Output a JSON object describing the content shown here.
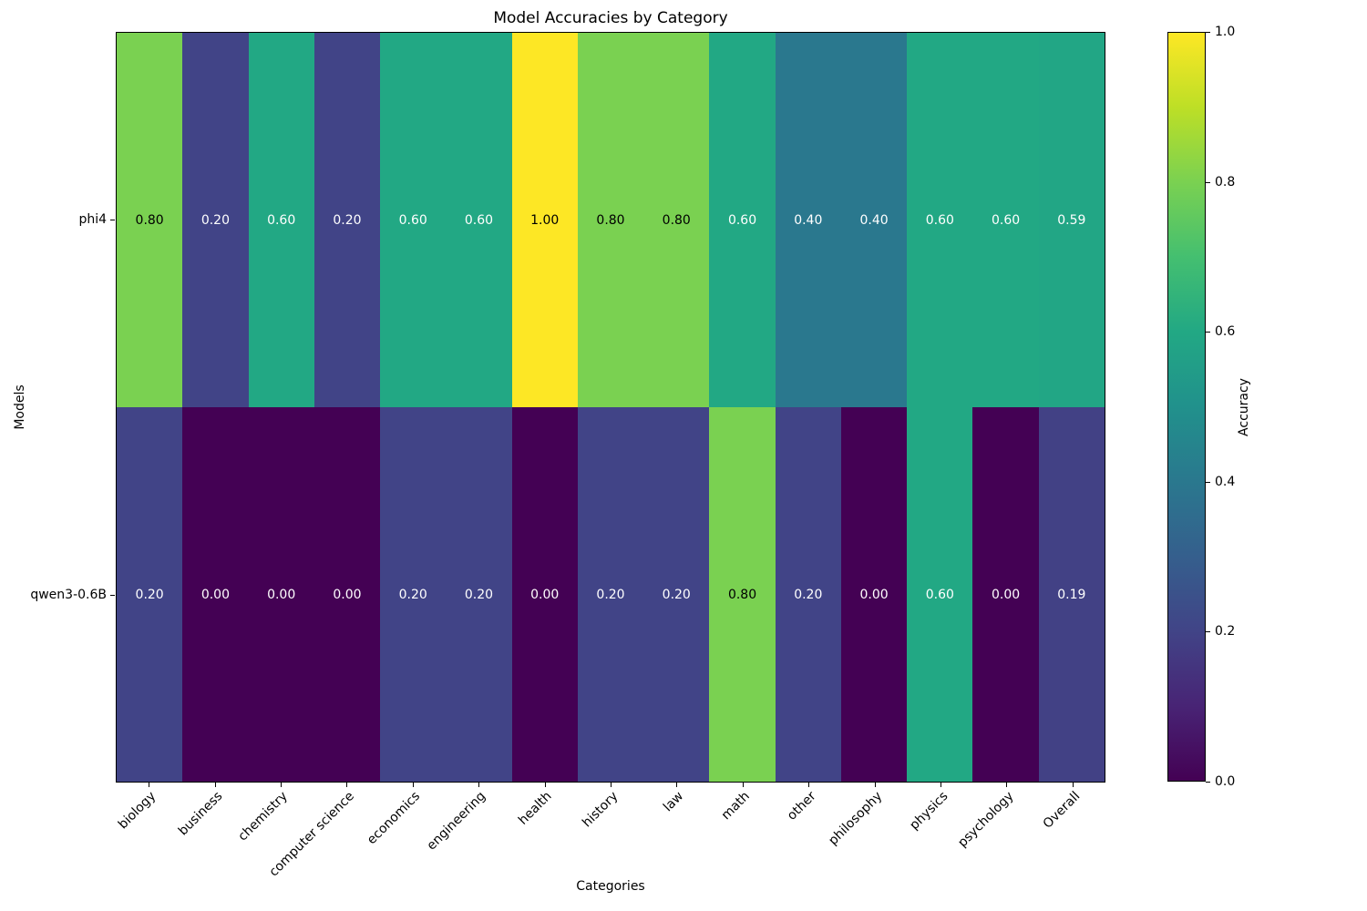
{
  "chart_data": {
    "type": "heatmap",
    "title": "Model Accuracies by Category",
    "xlabel": "Categories",
    "ylabel": "Models",
    "colorbar_label": "Accuracy",
    "colorbar_ticks": [
      1.0,
      0.8,
      0.6,
      0.4,
      0.2,
      0.0
    ],
    "vmin": 0.0,
    "vmax": 1.0,
    "categories": [
      "biology",
      "business",
      "chemistry",
      "computer science",
      "economics",
      "engineering",
      "health",
      "history",
      "law",
      "math",
      "other",
      "philosophy",
      "physics",
      "psychology",
      "Overall"
    ],
    "models": [
      "phi4",
      "qwen3-0.6B"
    ],
    "series": [
      {
        "name": "phi4",
        "values": [
          0.8,
          0.2,
          0.6,
          0.2,
          0.6,
          0.6,
          1.0,
          0.8,
          0.8,
          0.6,
          0.4,
          0.4,
          0.6,
          0.6,
          0.59
        ]
      },
      {
        "name": "qwen3-0.6B",
        "values": [
          0.2,
          0.0,
          0.0,
          0.0,
          0.2,
          0.2,
          0.0,
          0.2,
          0.2,
          0.8,
          0.2,
          0.0,
          0.6,
          0.0,
          0.19
        ]
      }
    ],
    "annotation_text_colors": {
      "dark": "#000000",
      "light": "#ffffff"
    },
    "colormap": {
      "name": "viridis",
      "stops": [
        {
          "pos": 0.0,
          "hex": "#440154"
        },
        {
          "pos": 0.1,
          "hex": "#482475"
        },
        {
          "pos": 0.2,
          "hex": "#414487"
        },
        {
          "pos": 0.3,
          "hex": "#355f8d"
        },
        {
          "pos": 0.4,
          "hex": "#2a788e"
        },
        {
          "pos": 0.5,
          "hex": "#21918c"
        },
        {
          "pos": 0.6,
          "hex": "#22a884"
        },
        {
          "pos": 0.7,
          "hex": "#44bf70"
        },
        {
          "pos": 0.8,
          "hex": "#7ad151"
        },
        {
          "pos": 0.9,
          "hex": "#bddf26"
        },
        {
          "pos": 1.0,
          "hex": "#fde725"
        }
      ]
    }
  }
}
